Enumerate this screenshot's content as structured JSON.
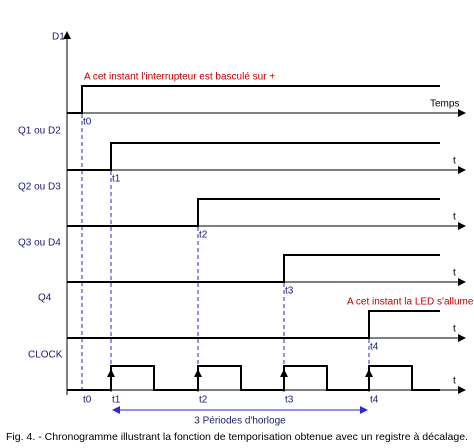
{
  "signals": [
    {
      "label": "D1",
      "axis_label": "Temps",
      "edge_label": "t0"
    },
    {
      "label": "Q1 ou D2",
      "axis_label": "t",
      "edge_label": "t1"
    },
    {
      "label": "Q2 ou D3",
      "axis_label": "t",
      "edge_label": "t2"
    },
    {
      "label": "Q3 ou D4",
      "axis_label": "t",
      "edge_label": "t3"
    },
    {
      "label": "Q4",
      "axis_label": "t",
      "edge_label": "t4"
    }
  ],
  "clock": {
    "label": "CLOCK",
    "axis_label": "t",
    "time_labels": [
      "t0",
      "t1",
      "t2",
      "t3",
      "t4"
    ]
  },
  "annotations": [
    "A cet instant l'interrupteur est basculé sur +",
    "A cet instant la LED s'allume"
  ],
  "period_label": "3 Périodes d'horloge",
  "caption": "Fig. 4. - Chronogramme illustrant la fonction de temporisation obtenue avec un registre à décalage."
}
